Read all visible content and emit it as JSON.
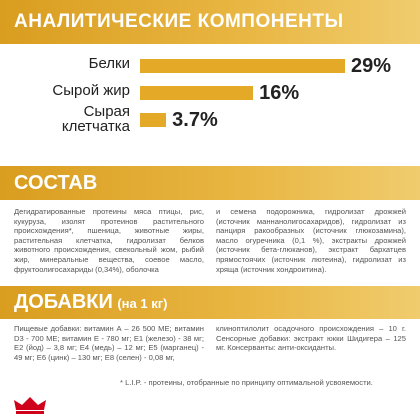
{
  "analysis": {
    "title": "АНАЛИТИЧЕСКИЕ КОМПОНЕНТЫ",
    "items": [
      {
        "label": "Белки",
        "value": 29,
        "value_label": "29%"
      },
      {
        "label": "Сырой жир",
        "value": 16,
        "value_label": "16%"
      },
      {
        "label": "Сырая клетчатка",
        "value": 3.7,
        "value_label": "3.7%"
      }
    ],
    "color": "#e3a927"
  },
  "composition": {
    "title": "СОСТАВ",
    "columns": [
      "Дегидратированные протеины мяса птицы, рис, кукуруза, изолят протеинов растительного происхождения*, пшеница, животные жиры, растительная клетчатка, гидролизат белков животного происхождения, свекольный жом, рыбий жир, минеральные вещества, соевое масло, фруктоолигосахариды (0,34%), оболочка",
      "и семена подорожника, гидролизат дрожжей (источник маннанолигосахаридов), гидролизат из панциря ракообразных (источник глюкозамина), масло огуречника (0,1 %), экстракты дрожжей (источник бета-глюканов), экстракт бархатцев прямостоячих (источник лютеина), гидролизат из хряща (источник хондроитина)."
    ]
  },
  "additives": {
    "title": "ДОБАВКИ",
    "subtitle": "(на 1 кг)",
    "columns": [
      "Пищевые добавки: витамин А – 26 500 МЕ; витамин D3 - 700 МЕ; витамин Е - 780 мг; E1 (железо) - 38 мг; E2 (йод) – 3,8 мг; E4 (медь) – 12 мг; E5 (марганец) - 49 мг; E6 (цинк) – 130 мг; E8 (селен) - 0,08 мг,",
      "клиноптилолит осадочного происхождения – 10 г. Сенсорные добавки: экстракт юкки Шидигера – 125 мг. Консерванты: анти-оксиданты."
    ]
  },
  "footnote": "* L.I.P. - протеины, отобранные по принципу оптимальной усвояемости."
}
